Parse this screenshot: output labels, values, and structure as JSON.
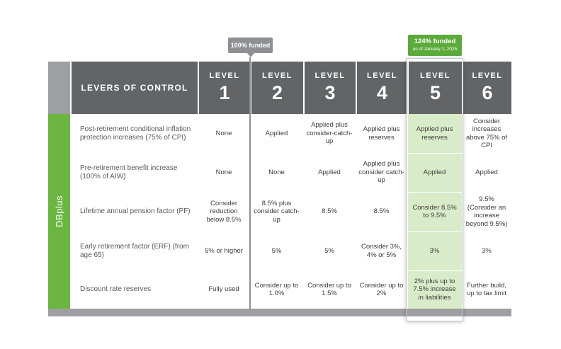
{
  "side_label": "DBplus",
  "header": {
    "levers": "LEVERS OF CONTROL",
    "level_word": "LEVEL",
    "levels": [
      "1",
      "2",
      "3",
      "4",
      "5",
      "6"
    ]
  },
  "callouts": {
    "funded_100": "100% funded",
    "funded_124": "124% funded",
    "funded_124_date": "as of January 1, 2025"
  },
  "rows": [
    {
      "label": "Post-retirement conditional inflation protection increases (75% of CPI)",
      "values": [
        "None",
        "Applied",
        "Applied plus consider-catch-up",
        "Applied plus reserves",
        "Applied plus reserves",
        "Consider increases above 75% of CPI"
      ]
    },
    {
      "label": "Pre-retirement benefit increase (100% of AIW)",
      "values": [
        "None",
        "None",
        "Applied",
        "Applied plus consider catch-up",
        "Applied",
        "Applied"
      ]
    },
    {
      "label": "Lifetime annual pension factor (PF)",
      "values": [
        "Consider reduction below 8.5%",
        "8.5% plus consider catch-up",
        "8.5%",
        "8.5%",
        "Consider 8.5% to 9.5%",
        "9.5% (Consider an increase beyond 9.5%)"
      ]
    },
    {
      "label": "Early retirement factor (ERF) (from age 65)",
      "values": [
        "5% or higher",
        "5%",
        "5%",
        "Consider 3%, 4% or 5%",
        "3%",
        "3%"
      ]
    },
    {
      "label": "Discount rate reserves",
      "values": [
        "Fully used",
        "Consider up to 1.0%",
        "Consider up to 1.5%",
        "Consider up to 2%",
        "2% plus up to 7.5% increase in liabilities",
        "Further build, up to tax limit"
      ]
    }
  ],
  "colors": {
    "header_dark": "#636466",
    "side_green": "#6db543",
    "highlight_fill": "#d9ecc9",
    "callout_green": "#5daa3c",
    "callout_gray": "#8e9093"
  }
}
